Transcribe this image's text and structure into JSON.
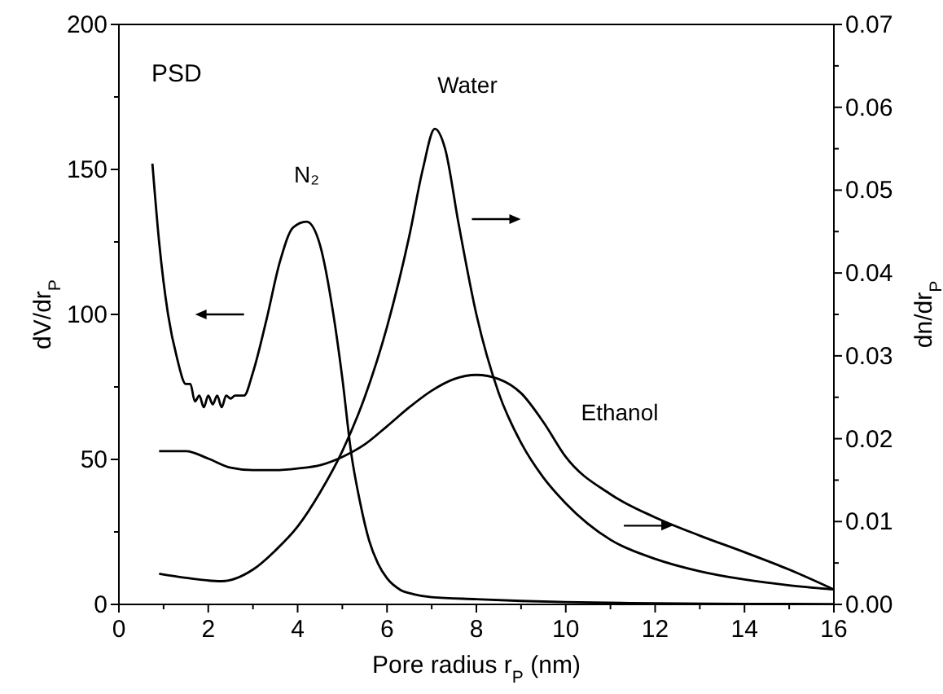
{
  "chart_data": {
    "type": "line",
    "annotations": [
      "PSD"
    ],
    "xlabel": "Pore radius r$_{P}$ (nm)",
    "ylabel": "dV/dr$_{P}$",
    "y2label": "dn/dr$_{P}$",
    "xlim": [
      0,
      16
    ],
    "xticks": [
      0,
      {
        "value": 1,
        "label": null
      },
      2,
      {
        "value": 3,
        "label": null
      },
      4,
      {
        "value": 5,
        "label": null
      },
      6,
      {
        "value": 7,
        "label": null
      },
      8,
      {
        "value": 9,
        "label": null
      },
      10,
      {
        "value": 11,
        "label": null
      },
      12,
      {
        "value": 13,
        "label": null
      },
      14,
      {
        "value": 15,
        "label": null
      },
      16
    ],
    "ylim": [
      0,
      200
    ],
    "yticks": [
      0,
      {
        "value": 25,
        "label": null
      },
      50,
      {
        "value": 75,
        "label": null
      },
      100,
      {
        "value": 125,
        "label": null
      },
      150,
      {
        "value": 175,
        "label": null
      },
      200
    ],
    "y2lim": [
      0,
      0.07
    ],
    "y2ticks": [
      {
        "value": 0,
        "label": "0.00"
      },
      {
        "value": 0.005,
        "label": null
      },
      {
        "value": 0.01,
        "label": "0.01"
      },
      {
        "value": 0.015,
        "label": null
      },
      {
        "value": 0.02,
        "label": "0.02"
      },
      {
        "value": 0.025,
        "label": null
      },
      {
        "value": 0.03,
        "label": "0.03"
      },
      {
        "value": 0.035,
        "label": null
      },
      {
        "value": 0.04,
        "label": "0.04"
      },
      {
        "value": 0.045,
        "label": null
      },
      {
        "value": 0.05,
        "label": "0.05"
      },
      {
        "value": 0.055,
        "label": null
      },
      {
        "value": 0.06,
        "label": "0.06"
      },
      {
        "value": 0.065,
        "label": null
      },
      {
        "value": 0.07,
        "label": "0.07"
      }
    ],
    "grid": false,
    "marker": "none",
    "line_style": "solid",
    "series": [
      {
        "name": "N₂",
        "color": "#000000",
        "x": [
          0.75,
          0.9,
          1.1,
          1.3,
          1.5,
          1.6,
          1.7,
          1.8,
          1.9,
          2.0,
          2.1,
          2.2,
          2.3,
          2.4,
          2.5,
          2.6,
          2.8,
          3.0,
          3.3,
          3.6,
          3.9,
          4.2,
          4.5,
          4.8,
          5.0,
          5.2,
          5.4,
          5.6,
          5.8,
          6.0,
          6.3,
          6.6,
          7.0,
          8.0,
          9.0,
          10.0,
          12.0,
          14.0,
          16.0
        ],
        "values": [
          152,
          125,
          100,
          85,
          76,
          76,
          70,
          72,
          68,
          72,
          69,
          72,
          68,
          72,
          71,
          72,
          72,
          80,
          98,
          118,
          130,
          132,
          124,
          100,
          78,
          52,
          35,
          22,
          14,
          9,
          5,
          3.5,
          2.5,
          1.8,
          1.2,
          0.8,
          0.4,
          0.2,
          0.1
        ]
      },
      {
        "name": "Water",
        "color": "#000000",
        "axis": "y2",
        "x": [
          0.9,
          1.5,
          2.3,
          3.0,
          3.5,
          4.0,
          4.5,
          5.0,
          5.5,
          6.0,
          6.5,
          6.8,
          7.07,
          7.3,
          7.6,
          8.0,
          8.5,
          9.0,
          9.5,
          10.0,
          11.0,
          12.0,
          13.0,
          14.0,
          15.0,
          16.0
        ],
        "values": [
          0.0037,
          0.0032,
          0.0028,
          0.0042,
          0.0065,
          0.0094,
          0.0135,
          0.0185,
          0.025,
          0.0335,
          0.0445,
          0.0525,
          0.0574,
          0.055,
          0.046,
          0.035,
          0.0255,
          0.0195,
          0.0153,
          0.0122,
          0.0078,
          0.0055,
          0.004,
          0.003,
          0.0023,
          0.0018
        ]
      },
      {
        "name": "Ethanol",
        "color": "#000000",
        "axis": "y2",
        "x": [
          0.9,
          1.5,
          2.0,
          2.5,
          3.0,
          3.5,
          4.0,
          4.5,
          5.0,
          5.5,
          6.0,
          6.5,
          7.0,
          7.5,
          8.0,
          8.5,
          9.0,
          9.5,
          10.0,
          11.0,
          12.0,
          13.0,
          14.0,
          15.0,
          16.0
        ],
        "values": [
          0.0185,
          0.0185,
          0.0176,
          0.0165,
          0.0162,
          0.0162,
          0.0164,
          0.0168,
          0.0178,
          0.0193,
          0.0215,
          0.0238,
          0.0258,
          0.0272,
          0.0277,
          0.0272,
          0.0255,
          0.022,
          0.0178,
          0.0133,
          0.0105,
          0.0083,
          0.0063,
          0.0042,
          0.0018
        ]
      }
    ]
  }
}
